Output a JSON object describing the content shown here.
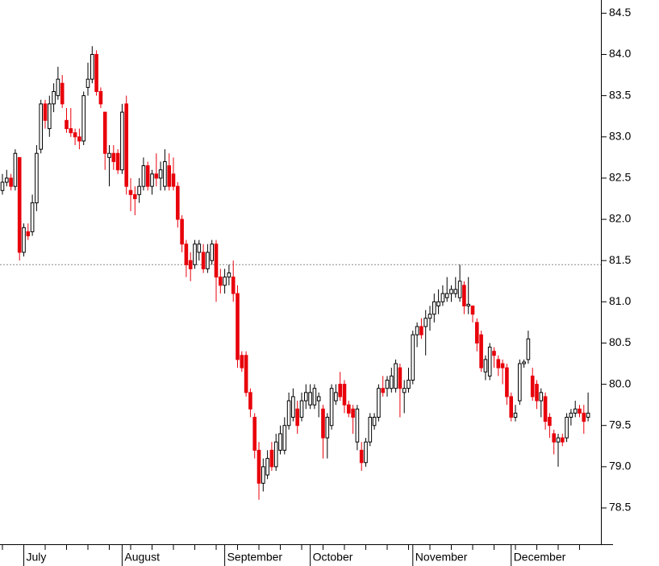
{
  "chart_data": {
    "type": "candlestick",
    "categories": [
      null,
      null,
      null,
      null,
      null,
      "July",
      null,
      null,
      null,
      null,
      null,
      null,
      null,
      null,
      null,
      null,
      null,
      null,
      null,
      null,
      null,
      null,
      null,
      null,
      null,
      null,
      null,
      null,
      "August",
      null,
      null,
      null,
      null,
      null,
      null,
      null,
      null,
      null,
      null,
      null,
      null,
      null,
      null,
      null,
      null,
      null,
      null,
      null,
      null,
      null,
      null,
      null,
      "September",
      null,
      null,
      null,
      null,
      null,
      null,
      null,
      null,
      null,
      null,
      null,
      null,
      null,
      null,
      null,
      null,
      null,
      null,
      null,
      "October",
      null,
      null,
      null,
      null,
      null,
      null,
      null,
      null,
      null,
      null,
      null,
      null,
      null,
      null,
      null,
      null,
      null,
      null,
      null,
      null,
      null,
      null,
      null,
      "November",
      null,
      null,
      null,
      null,
      null,
      null,
      null,
      null,
      null,
      null,
      null,
      null,
      null,
      null,
      null,
      null,
      null,
      null,
      null,
      null,
      null,
      null,
      "December",
      null,
      null,
      null,
      null,
      null,
      null,
      null,
      null,
      null,
      null,
      null,
      null,
      null,
      null,
      null,
      null,
      null,
      null
    ],
    "open": [
      82.35,
      82.45,
      82.5,
      82.4,
      82.75,
      81.6,
      81.85,
      81.85,
      82.2,
      82.85,
      83.4,
      83.1,
      83.4,
      83.5,
      83.65,
      83.2,
      83.1,
      83.05,
      83.0,
      82.95,
      83.6,
      83.7,
      84.0,
      83.55,
      83.3,
      82.75,
      82.8,
      82.8,
      82.6,
      83.4,
      82.35,
      82.3,
      82.3,
      82.4,
      82.65,
      82.4,
      82.55,
      82.5,
      82.4,
      82.65,
      82.55,
      82.4,
      82.0,
      81.7,
      81.5,
      81.45,
      81.6,
      81.6,
      81.4,
      81.5,
      81.7,
      81.3,
      81.2,
      81.3,
      81.3,
      81.1,
      80.35,
      80.35,
      79.9,
      79.6,
      79.2,
      78.8,
      78.9,
      79.2,
      79.0,
      79.2,
      79.2,
      79.5,
      79.6,
      79.7,
      79.6,
      79.8,
      79.75,
      79.75,
      79.8,
      79.7,
      79.35,
      79.5,
      79.8,
      80.0,
      80.0,
      79.75,
      79.7,
      79.3,
      79.2,
      79.05,
      79.3,
      79.5,
      79.6,
      79.95,
      79.95,
      79.95,
      79.95,
      80.2,
      79.9,
      79.95,
      80.05,
      80.6,
      80.7,
      80.7,
      80.8,
      80.85,
      80.95,
      81.0,
      81.05,
      81.1,
      81.1,
      81.05,
      81.2,
      80.95,
      80.95,
      80.75,
      80.6,
      80.15,
      80.1,
      80.4,
      80.3,
      80.25,
      80.2,
      79.85,
      79.6,
      79.8,
      80.25,
      80.3,
      80.1,
      80.0,
      79.8,
      79.85,
      79.6,
      79.4,
      79.3,
      79.35,
      79.35,
      79.6,
      79.65,
      79.7,
      79.65,
      79.6
    ],
    "high": [
      82.55,
      82.6,
      82.55,
      82.85,
      82.75,
      81.95,
      81.95,
      82.3,
      82.9,
      83.45,
      83.45,
      83.5,
      83.65,
      83.85,
      83.75,
      83.35,
      83.35,
      83.1,
      83.1,
      83.55,
      83.9,
      84.1,
      84.05,
      83.6,
      83.3,
      82.9,
      82.9,
      82.85,
      83.4,
      83.5,
      82.5,
      82.4,
      82.5,
      82.75,
      82.7,
      82.6,
      82.8,
      82.7,
      82.85,
      82.8,
      82.75,
      82.45,
      82.05,
      81.75,
      81.6,
      81.75,
      81.75,
      81.7,
      81.7,
      81.75,
      81.75,
      81.4,
      81.4,
      81.45,
      81.5,
      81.2,
      80.4,
      80.4,
      79.95,
      79.65,
      79.3,
      79.1,
      79.2,
      79.3,
      79.4,
      79.5,
      79.6,
      79.9,
      79.95,
      79.8,
      79.9,
      80.0,
      80.0,
      80.0,
      79.9,
      79.75,
      79.65,
      80.0,
      80.0,
      80.15,
      80.05,
      79.8,
      79.75,
      79.75,
      79.3,
      79.35,
      79.65,
      79.65,
      80.0,
      80.1,
      80.1,
      80.2,
      80.3,
      80.25,
      80.05,
      80.2,
      80.65,
      80.75,
      80.8,
      80.9,
      80.95,
      81.1,
      81.15,
      81.2,
      81.3,
      81.2,
      81.3,
      81.45,
      81.25,
      81.3,
      80.95,
      80.8,
      80.65,
      80.35,
      80.5,
      80.45,
      80.35,
      80.3,
      80.25,
      79.9,
      79.75,
      80.3,
      80.3,
      80.65,
      80.2,
      80.05,
      79.95,
      79.9,
      79.65,
      79.45,
      79.4,
      79.4,
      79.65,
      79.7,
      79.8,
      79.75,
      79.75,
      79.9
    ],
    "low": [
      82.3,
      82.4,
      82.35,
      82.35,
      81.5,
      81.55,
      81.75,
      81.8,
      82.1,
      82.8,
      83.1,
      83.0,
      83.3,
      83.45,
      83.35,
      83.05,
      83.0,
      82.9,
      82.85,
      82.9,
      83.5,
      83.65,
      83.5,
      83.35,
      82.6,
      82.4,
      82.6,
      82.55,
      82.55,
      82.3,
      82.1,
      82.05,
      82.2,
      82.35,
      82.35,
      82.3,
      82.4,
      82.35,
      82.35,
      82.35,
      82.35,
      81.9,
      81.6,
      81.3,
      81.25,
      81.4,
      81.5,
      81.35,
      81.35,
      81.45,
      81.0,
      81.1,
      81.1,
      81.2,
      81.0,
      80.2,
      80.15,
      79.85,
      79.6,
      79.1,
      78.6,
      78.7,
      78.85,
      78.95,
      78.95,
      79.15,
      79.15,
      79.45,
      79.55,
      79.4,
      79.55,
      79.7,
      79.7,
      79.7,
      79.6,
      79.1,
      79.1,
      79.45,
      79.75,
      79.8,
      79.65,
      79.6,
      79.4,
      79.2,
      78.95,
      79.0,
      79.25,
      79.45,
      79.55,
      79.85,
      79.85,
      79.9,
      79.9,
      79.6,
      79.65,
      79.9,
      80.0,
      80.45,
      80.55,
      80.35,
      80.65,
      80.75,
      80.85,
      80.95,
      81.0,
      81.0,
      81.05,
      81.0,
      80.85,
      80.85,
      80.75,
      80.4,
      80.15,
      80.05,
      80.05,
      80.2,
      80.1,
      80.0,
      79.75,
      79.55,
      79.55,
      79.75,
      80.2,
      80.25,
      79.8,
      79.7,
      79.6,
      79.45,
      79.35,
      79.15,
      79.0,
      79.25,
      79.3,
      79.5,
      79.6,
      79.6,
      79.4,
      79.55
    ],
    "close": [
      82.45,
      82.5,
      82.4,
      82.8,
      81.6,
      81.9,
      81.8,
      82.2,
      82.8,
      83.4,
      83.2,
      83.4,
      83.55,
      83.7,
      83.4,
      83.1,
      83.05,
      83.0,
      82.95,
      83.5,
      83.7,
      84.0,
      83.55,
      83.4,
      82.8,
      82.8,
      82.7,
      82.6,
      83.3,
      82.4,
      82.3,
      82.25,
      82.4,
      82.65,
      82.4,
      82.55,
      82.5,
      82.6,
      82.7,
      82.4,
      82.4,
      82.0,
      81.7,
      81.45,
      81.4,
      81.7,
      81.7,
      81.4,
      81.6,
      81.7,
      81.3,
      81.2,
      81.3,
      81.35,
      81.1,
      80.3,
      80.2,
      79.9,
      79.7,
      79.2,
      78.8,
      79.0,
      79.1,
      79.0,
      79.3,
      79.4,
      79.5,
      79.8,
      79.85,
      79.5,
      79.8,
      79.9,
      79.9,
      79.95,
      79.85,
      79.35,
      79.6,
      79.95,
      79.9,
      79.85,
      79.75,
      79.65,
      79.6,
      79.7,
      79.05,
      79.3,
      79.6,
      79.6,
      79.95,
      79.9,
      80.05,
      80.1,
      80.25,
      79.95,
      79.95,
      80.05,
      80.6,
      80.7,
      80.6,
      80.8,
      80.85,
      81.0,
      81.0,
      81.1,
      81.1,
      81.15,
      81.15,
      81.25,
      80.95,
      80.97,
      80.85,
      80.5,
      80.2,
      80.3,
      80.45,
      80.35,
      80.2,
      80.2,
      79.85,
      79.6,
      79.65,
      80.25,
      80.27,
      80.55,
      79.85,
      79.8,
      79.9,
      79.55,
      79.5,
      79.3,
      79.35,
      79.3,
      79.6,
      79.65,
      79.7,
      79.65,
      79.55,
      79.65
    ],
    "up_color": "#ffffff",
    "down_color": "#e8000b",
    "ylim": [
      78.06,
      84.66
    ],
    "yticks": [
      84.5,
      {
        "value": 84,
        "label": "84.0"
      },
      83.5,
      {
        "value": 83,
        "label": "83.0"
      },
      82.5,
      {
        "value": 82,
        "label": "82.0"
      },
      81.5,
      {
        "value": 81,
        "label": "81.0"
      },
      80.5,
      {
        "value": 80,
        "label": "80.0"
      },
      79.5,
      {
        "value": 79,
        "label": "79.0"
      },
      78.5
    ],
    "reference_line": 81.45
  }
}
